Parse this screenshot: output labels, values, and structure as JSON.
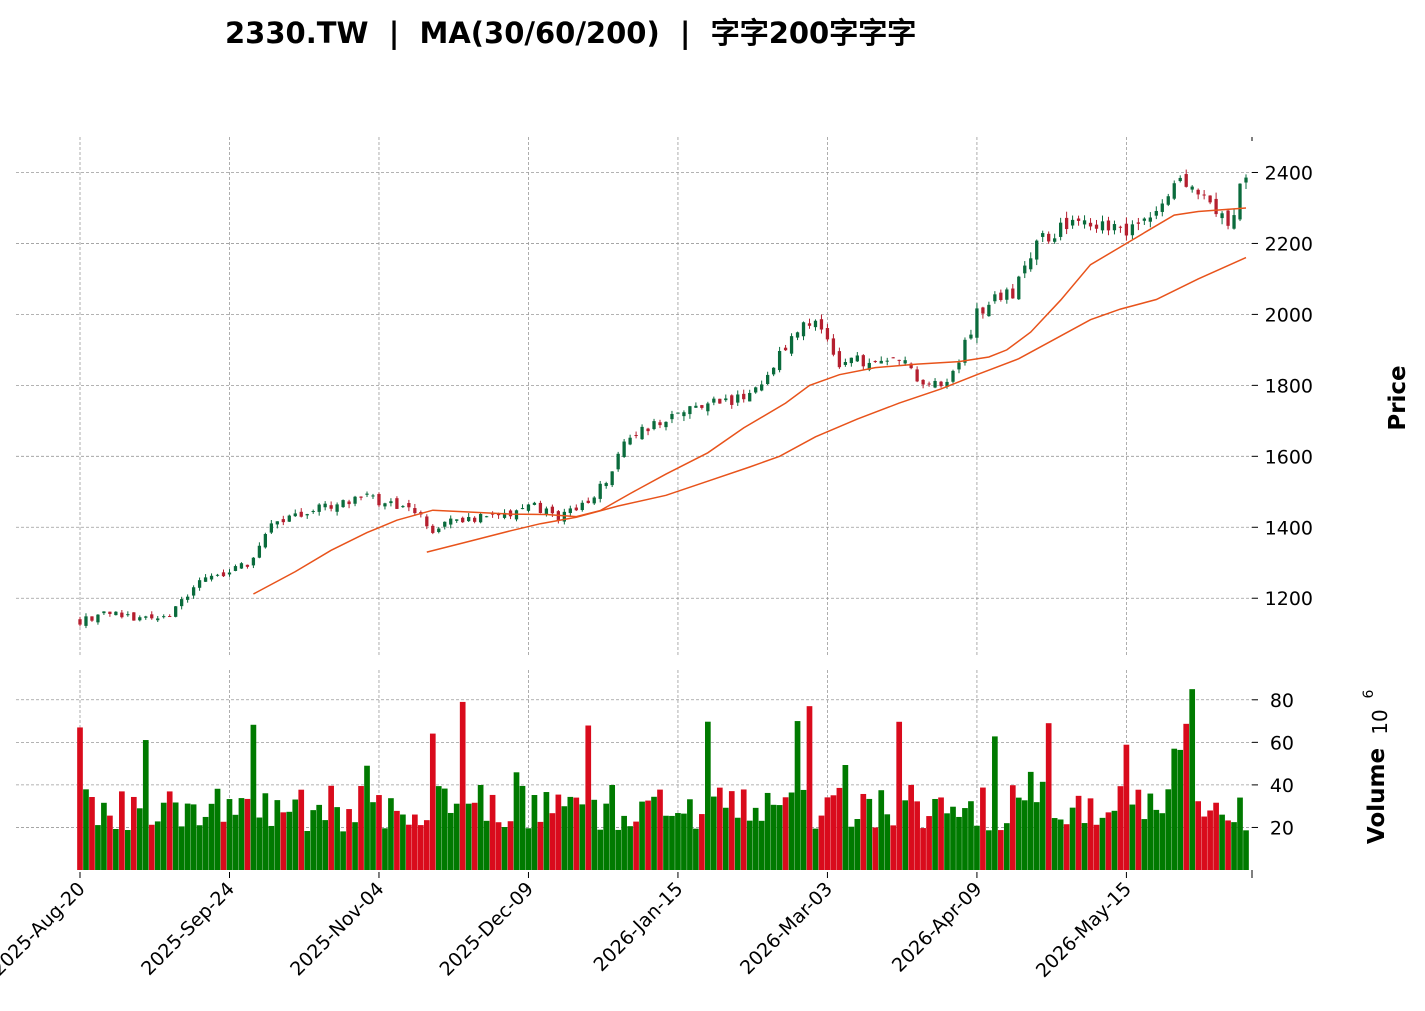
{
  "chart_data": {
    "type": "candlestick",
    "title": "2330.TW  |  MA(30/60/200)  |  字字200字字字",
    "ylabel": "Price",
    "volume_label": "Volume",
    "volume_exponent": "10",
    "volume_exponent_power": "6",
    "price_ylim": [
      1040,
      2500
    ],
    "volume_ylim": [
      0,
      94
    ],
    "price_ticks": [
      1200,
      1400,
      1600,
      1800,
      2000,
      2200,
      2400
    ],
    "volume_ticks": [
      20,
      40,
      60,
      80
    ],
    "price_tick_labels": [
      "1200",
      "1400",
      "1600",
      "1800",
      "2000",
      "2200",
      "2400"
    ],
    "volume_tick_labels": [
      "20",
      "40",
      "60",
      "80"
    ],
    "num_bars": 196,
    "x_ticks": [
      {
        "index": 0,
        "label": "2025-Aug-20"
      },
      {
        "index": 25,
        "label": "2025-Sep-24"
      },
      {
        "index": 50,
        "label": "2025-Nov-04"
      },
      {
        "index": 75,
        "label": "2025-Dec-09"
      },
      {
        "index": 100,
        "label": "2026-Jan-15"
      },
      {
        "index": 125,
        "label": "2026-Mar-03"
      },
      {
        "index": 150,
        "label": "2026-Apr-09"
      },
      {
        "index": 175,
        "label": "2026-May-15"
      }
    ],
    "close_anchors": [
      [
        0,
        1135
      ],
      [
        5,
        1165
      ],
      [
        10,
        1140
      ],
      [
        15,
        1160
      ],
      [
        20,
        1250
      ],
      [
        25,
        1270
      ],
      [
        28,
        1300
      ],
      [
        32,
        1400
      ],
      [
        37,
        1440
      ],
      [
        42,
        1460
      ],
      [
        47,
        1490
      ],
      [
        50,
        1470
      ],
      [
        55,
        1460
      ],
      [
        59,
        1395
      ],
      [
        63,
        1420
      ],
      [
        67,
        1430
      ],
      [
        72,
        1440
      ],
      [
        75,
        1470
      ],
      [
        80,
        1420
      ],
      [
        85,
        1480
      ],
      [
        88,
        1530
      ],
      [
        92,
        1660
      ],
      [
        96,
        1690
      ],
      [
        100,
        1730
      ],
      [
        105,
        1750
      ],
      [
        110,
        1760
      ],
      [
        114,
        1790
      ],
      [
        118,
        1910
      ],
      [
        121,
        1990
      ],
      [
        124,
        1960
      ],
      [
        127,
        1850
      ],
      [
        130,
        1870
      ],
      [
        133,
        1860
      ],
      [
        137,
        1880
      ],
      [
        141,
        1790
      ],
      [
        146,
        1830
      ],
      [
        150,
        2000
      ],
      [
        153,
        2050
      ],
      [
        156,
        2060
      ],
      [
        160,
        2200
      ],
      [
        164,
        2240
      ],
      [
        168,
        2260
      ],
      [
        172,
        2250
      ],
      [
        176,
        2240
      ],
      [
        180,
        2300
      ],
      [
        184,
        2380
      ],
      [
        188,
        2330
      ],
      [
        192,
        2250
      ],
      [
        195,
        2400
      ]
    ],
    "ma_series": [
      {
        "color": "#e8531b",
        "points": [
          [
            29,
            1212
          ],
          [
            36,
            1275
          ],
          [
            42,
            1335
          ],
          [
            48,
            1385
          ],
          [
            53,
            1420
          ],
          [
            59,
            1448
          ],
          [
            65,
            1443
          ],
          [
            72,
            1437
          ],
          [
            78,
            1436
          ],
          [
            83,
            1430
          ],
          [
            87,
            1447
          ],
          [
            92,
            1495
          ],
          [
            98,
            1550
          ],
          [
            105,
            1610
          ],
          [
            111,
            1680
          ],
          [
            118,
            1750
          ],
          [
            122,
            1800
          ],
          [
            127,
            1830
          ],
          [
            133,
            1850
          ],
          [
            140,
            1860
          ],
          [
            147,
            1867
          ],
          [
            152,
            1880
          ],
          [
            155,
            1900
          ],
          [
            159,
            1950
          ],
          [
            164,
            2040
          ],
          [
            169,
            2140
          ],
          [
            174,
            2190
          ],
          [
            179,
            2240
          ],
          [
            183,
            2280
          ],
          [
            187,
            2290
          ],
          [
            195,
            2300
          ]
        ]
      },
      {
        "color": "#e8531b",
        "points": [
          [
            58,
            1330
          ],
          [
            65,
            1360
          ],
          [
            72,
            1390
          ],
          [
            77,
            1410
          ],
          [
            83,
            1428
          ],
          [
            90,
            1460
          ],
          [
            98,
            1490
          ],
          [
            105,
            1530
          ],
          [
            112,
            1570
          ],
          [
            117,
            1600
          ],
          [
            123,
            1655
          ],
          [
            130,
            1705
          ],
          [
            137,
            1750
          ],
          [
            144,
            1790
          ],
          [
            150,
            1830
          ],
          [
            157,
            1875
          ],
          [
            163,
            1930
          ],
          [
            169,
            1985
          ],
          [
            174,
            2015
          ],
          [
            180,
            2042
          ],
          [
            187,
            2100
          ],
          [
            195,
            2160
          ]
        ]
      }
    ],
    "colors": {
      "up_candle": "#0a6b3c",
      "down_candle": "#b51f2f",
      "up_volume": "#007a00",
      "down_volume": "#d90b1c",
      "grid": "#9a9a9a",
      "moving_average": "#e8531b"
    },
    "grid": true
  }
}
